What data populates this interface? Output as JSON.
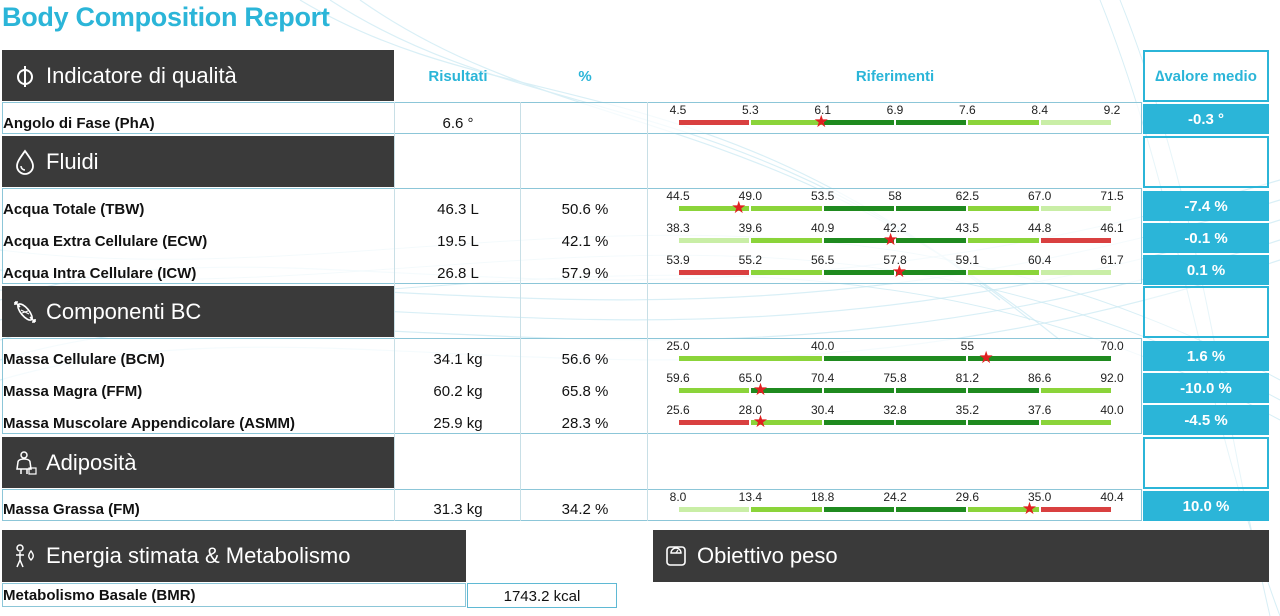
{
  "title": "Body Composition Report",
  "columns": {
    "results": "Risultati",
    "percent": "%",
    "references": "Riferimenti",
    "delta": "∆valore medio"
  },
  "sections": {
    "quality": "Indicatore di qualità",
    "fluids": "Fluidi",
    "bc": "Componenti BC",
    "adiposity": "Adiposità",
    "energy": "Energia stimata & Metabolismo",
    "weight_goal": "Obiettivo peso"
  },
  "rows": {
    "pha": {
      "label": "Angolo di Fase (PhA)",
      "result": "6.6 °",
      "percent": "",
      "delta": "-0.3 °",
      "ticks": [
        "4.5",
        "5.3",
        "6.1",
        "6.9",
        "7.6",
        "8.4",
        "9.2"
      ],
      "colors": [
        "red",
        "light",
        "dark",
        "dark",
        "light",
        "pale"
      ],
      "marker_position": 0.33
    },
    "tbw": {
      "label": "Acqua Totale (TBW)",
      "result": "46.3 L",
      "percent": "50.6 %",
      "delta": "-7.4 %",
      "ticks": [
        "44.5",
        "49.0",
        "53.5",
        "58",
        "62.5",
        "67.0",
        "71.5"
      ],
      "colors": [
        "light",
        "light",
        "dark",
        "dark",
        "light",
        "pale"
      ],
      "marker_position": 0.14
    },
    "ecw": {
      "label": "Acqua Extra Cellulare (ECW)",
      "result": "19.5 L",
      "percent": "42.1 %",
      "delta": "-0.1 %",
      "ticks": [
        "38.3",
        "39.6",
        "40.9",
        "42.2",
        "43.5",
        "44.8",
        "46.1"
      ],
      "colors": [
        "pale",
        "light",
        "dark",
        "dark",
        "light",
        "red"
      ],
      "marker_position": 0.49
    },
    "icw": {
      "label": "Acqua Intra Cellulare (ICW)",
      "result": "26.8 L",
      "percent": "57.9 %",
      "delta": "0.1 %",
      "ticks": [
        "53.9",
        "55.2",
        "56.5",
        "57.8",
        "59.1",
        "60.4",
        "61.7"
      ],
      "colors": [
        "red",
        "light",
        "dark",
        "dark",
        "light",
        "pale"
      ],
      "marker_position": 0.51
    },
    "bcm": {
      "label": "Massa Cellulare (BCM)",
      "result": "34.1 kg",
      "percent": "56.6 %",
      "delta": "1.6 %",
      "ticks": [
        "25.0",
        "40.0",
        "55",
        "70.0"
      ],
      "colors": [
        "light",
        "dark",
        "dark"
      ],
      "marker_position": 0.71
    },
    "ffm": {
      "label": "Massa Magra (FFM)",
      "result": "60.2 kg",
      "percent": "65.8 %",
      "delta": "-10.0 %",
      "ticks": [
        "59.6",
        "65.0",
        "70.4",
        "75.8",
        "81.2",
        "86.6",
        "92.0"
      ],
      "colors": [
        "light",
        "dark",
        "dark",
        "dark",
        "dark",
        "light"
      ],
      "marker_position": 0.19
    },
    "asmm": {
      "label": "Massa Muscolare Appendicolare (ASMM)",
      "result": "25.9 kg",
      "percent": "28.3 %",
      "delta": "-4.5 %",
      "ticks": [
        "25.6",
        "28.0",
        "30.4",
        "32.8",
        "35.2",
        "37.6",
        "40.0"
      ],
      "colors": [
        "red",
        "light",
        "dark",
        "dark",
        "dark",
        "light"
      ],
      "marker_position": 0.19
    },
    "fm": {
      "label": "Massa Grassa (FM)",
      "result": "31.3 kg",
      "percent": "34.2 %",
      "delta": "10.0 %",
      "ticks": [
        "8.0",
        "13.4",
        "18.8",
        "24.2",
        "29.6",
        "35.0",
        "40.4"
      ],
      "colors": [
        "pale",
        "light",
        "dark",
        "dark",
        "light",
        "red"
      ],
      "marker_position": 0.81
    }
  },
  "bmr": {
    "label": "Metabolismo Basale (BMR)",
    "value": "1743.2 kcal"
  },
  "palette": {
    "red": "#d94040",
    "light": "#8bd43a",
    "dark": "#1f8a1f",
    "pale": "#c9eea6",
    "accent": "#2bb5d8",
    "header": "#3a3a3a"
  }
}
